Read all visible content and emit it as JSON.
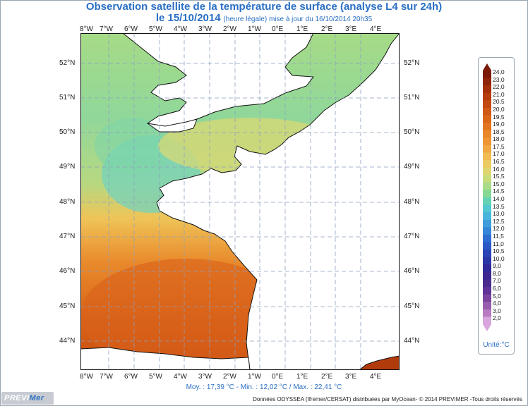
{
  "title": {
    "line1": "Observation satellite de la température de surface (analyse L4 sur 24h)",
    "date": "le 15/10/2014",
    "subtitle": "(heure légale) mise à jour du 16/10/2014 20h35"
  },
  "axes": {
    "lon_labels": [
      "8°W",
      "7°W",
      "6°W",
      "5°W",
      "4°W",
      "3°W",
      "2°W",
      "1°W",
      "0°E",
      "1°E",
      "2°E",
      "3°E",
      "4°E"
    ],
    "lat_labels": [
      "52°N",
      "51°N",
      "50°N",
      "49°N",
      "48°N",
      "47°N",
      "46°N",
      "45°N",
      "44°N"
    ]
  },
  "stats": "Moy. : 17,39 °C   -   Min. : 12,02 °C / Max. : 22,41 °C",
  "footer": "Données ODYSSEA (Ifremer/CERSAT) distribuées par MyOcean- © 2014 PREVIMER -Tous droits réservés",
  "logo": {
    "part1": "PREVI",
    "part2": "Mer"
  },
  "legend": {
    "unit": "Unité:°C",
    "labels": [
      "24,0",
      "23,0",
      "22,0",
      "21,0",
      "20,5",
      "20,0",
      "19,5",
      "19,0",
      "18,5",
      "18,0",
      "17,5",
      "17,0",
      "16,5",
      "16,0",
      "15,5",
      "15,0",
      "14,5",
      "14,0",
      "13,5",
      "13,0",
      "12,5",
      "12,0",
      "11,5",
      "11,0",
      "10,5",
      "10,0",
      "9,0",
      "8,0",
      "7,0",
      "6,0",
      "5,0",
      "4,0",
      "3,0",
      "2,0"
    ],
    "colors": [
      "#7a1a06",
      "#8f2508",
      "#a4300a",
      "#b63d0c",
      "#c24a10",
      "#cf5814",
      "#da6718",
      "#e2761e",
      "#e98628",
      "#ee9634",
      "#f0a842",
      "#f0bb52",
      "#ecca62",
      "#dfd670",
      "#c8dc7c",
      "#a8dc88",
      "#86d894",
      "#66d2b4",
      "#52c8d0",
      "#48b6dc",
      "#3e9edc",
      "#3686d8",
      "#2e6ed0",
      "#2a58c4",
      "#2844b4",
      "#2a36a4",
      "#322a98",
      "#3e2690",
      "#4a2a8e",
      "#5e3296",
      "#7a449e",
      "#985cae",
      "#b87ac0",
      "#d8a6dc"
    ]
  }
}
